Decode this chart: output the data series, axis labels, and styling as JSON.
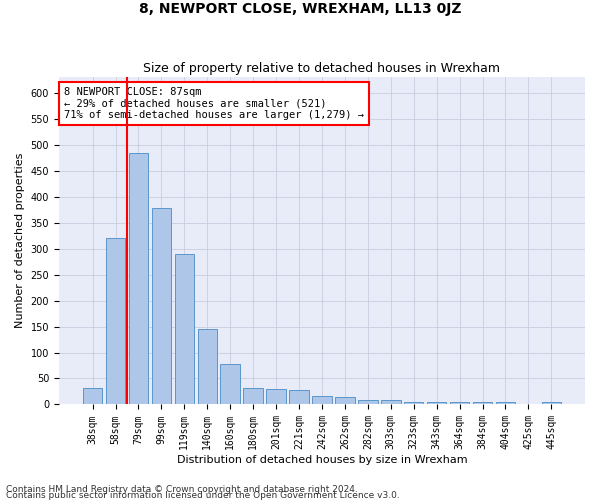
{
  "title": "8, NEWPORT CLOSE, WREXHAM, LL13 0JZ",
  "subtitle": "Size of property relative to detached houses in Wrexham",
  "xlabel": "Distribution of detached houses by size in Wrexham",
  "ylabel": "Number of detached properties",
  "categories": [
    "38sqm",
    "58sqm",
    "79sqm",
    "99sqm",
    "119sqm",
    "140sqm",
    "160sqm",
    "180sqm",
    "201sqm",
    "221sqm",
    "242sqm",
    "262sqm",
    "282sqm",
    "303sqm",
    "323sqm",
    "343sqm",
    "364sqm",
    "384sqm",
    "404sqm",
    "425sqm",
    "445sqm"
  ],
  "values": [
    32,
    321,
    484,
    378,
    290,
    145,
    77,
    32,
    30,
    28,
    16,
    15,
    8,
    8,
    5,
    5,
    5,
    5,
    5,
    0,
    5
  ],
  "bar_color": "#aec6e8",
  "bar_edge_color": "#5a96cc",
  "vline_color": "red",
  "annotation_text": "8 NEWPORT CLOSE: 87sqm\n← 29% of detached houses are smaller (521)\n71% of semi-detached houses are larger (1,279) →",
  "annotation_box_color": "white",
  "annotation_box_edge": "red",
  "ylim": [
    0,
    630
  ],
  "yticks": [
    0,
    50,
    100,
    150,
    200,
    250,
    300,
    350,
    400,
    450,
    500,
    550,
    600
  ],
  "background_color": "#e8ecf8",
  "grid_color": "#c8cce0",
  "footer_line1": "Contains HM Land Registry data © Crown copyright and database right 2024.",
  "footer_line2": "Contains public sector information licensed under the Open Government Licence v3.0.",
  "title_fontsize": 10,
  "subtitle_fontsize": 9,
  "axis_label_fontsize": 8,
  "tick_fontsize": 7,
  "annotation_fontsize": 7.5,
  "footer_fontsize": 6.5
}
